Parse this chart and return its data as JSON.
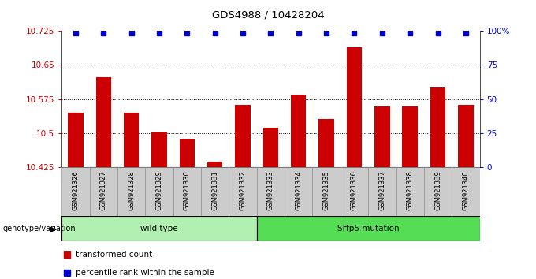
{
  "title": "GDS4988 / 10428204",
  "samples": [
    "GSM921326",
    "GSM921327",
    "GSM921328",
    "GSM921329",
    "GSM921330",
    "GSM921331",
    "GSM921332",
    "GSM921333",
    "GSM921334",
    "GSM921335",
    "GSM921336",
    "GSM921337",
    "GSM921338",
    "GSM921339",
    "GSM921340"
  ],
  "bar_values": [
    10.545,
    10.622,
    10.545,
    10.502,
    10.488,
    10.437,
    10.563,
    10.513,
    10.585,
    10.532,
    10.688,
    10.558,
    10.558,
    10.6,
    10.563
  ],
  "percentile_values": [
    98,
    98,
    98,
    98,
    98,
    98,
    98,
    98,
    98,
    98,
    98,
    98,
    98,
    98,
    98
  ],
  "bar_color": "#cc0000",
  "dot_color": "#0000cc",
  "ylim_left": [
    10.425,
    10.725
  ],
  "ylim_right": [
    0,
    100
  ],
  "yticks_left": [
    10.425,
    10.5,
    10.575,
    10.65,
    10.725
  ],
  "ytick_labels_left": [
    "10.425",
    "10.5",
    "10.575",
    "10.65",
    "10.725"
  ],
  "yticks_right": [
    0,
    25,
    50,
    75,
    100
  ],
  "ytick_labels_right": [
    "0",
    "25",
    "50",
    "75",
    "100%"
  ],
  "grid_lines": [
    10.5,
    10.575,
    10.65
  ],
  "group1_label": "wild type",
  "group2_label": "Srfp5 mutation",
  "group1_count": 7,
  "group2_count": 8,
  "genotype_label": "genotype/variation",
  "legend_bar_label": "transformed count",
  "legend_dot_label": "percentile rank within the sample",
  "group1_color": "#b2f0b2",
  "group2_color": "#55dd55",
  "bg_color": "#ffffff",
  "xticklabel_bg": "#cccccc"
}
